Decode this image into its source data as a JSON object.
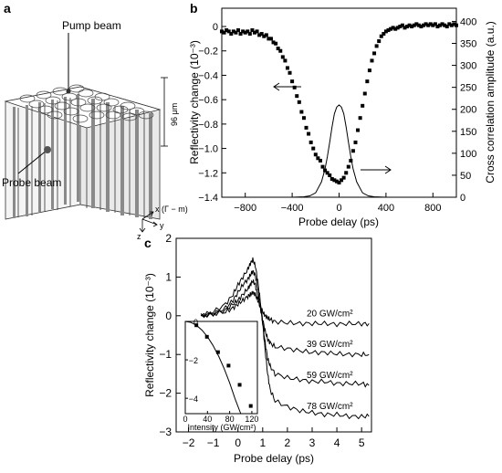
{
  "panels": {
    "a": {
      "label": "a",
      "pump_label": "Pump beam",
      "probe_label": "Probe beam",
      "height_label": "96 μm",
      "axis_x_label": "x (Γ − m)",
      "axis_y_label": "y",
      "axis_z_label": "z"
    },
    "b": {
      "label": "b"
    },
    "c": {
      "label": "c"
    }
  },
  "chart_data": [
    {
      "id": "b",
      "type": "scatter",
      "xlabel": "Probe delay (ps)",
      "ylabel": "Reflectivity change (10⁻³)",
      "ylabel_right": "Cross correlation amplitude (a.u.)",
      "xlim": [
        -1000,
        1000
      ],
      "ylim": [
        -1.4,
        0.15
      ],
      "ylim_right": [
        0,
        430
      ],
      "xticks": [
        -800,
        -400,
        0,
        400,
        800
      ],
      "yticks": [
        0,
        -0.2,
        -0.4,
        -0.6,
        -0.8,
        -1.0,
        -1.2,
        -1.4
      ],
      "yticks_right": [
        0,
        50,
        100,
        150,
        200,
        250,
        300,
        350,
        400
      ],
      "series": [
        {
          "axis": "left",
          "style": "squares",
          "x": [
            -1000,
            -980,
            -960,
            -940,
            -920,
            -900,
            -880,
            -860,
            -840,
            -820,
            -800,
            -780,
            -760,
            -740,
            -720,
            -700,
            -680,
            -660,
            -640,
            -620,
            -600,
            -580,
            -560,
            -540,
            -520,
            -500,
            -480,
            -460,
            -440,
            -420,
            -400,
            -380,
            -360,
            -340,
            -320,
            -300,
            -280,
            -260,
            -240,
            -220,
            -200,
            -180,
            -160,
            -140,
            -120,
            -100,
            -80,
            -60,
            -40,
            -20,
            0,
            20,
            40,
            60,
            80,
            100,
            120,
            140,
            160,
            180,
            200,
            220,
            240,
            260,
            280,
            300,
            320,
            340,
            360,
            380,
            400,
            420,
            440,
            460,
            480,
            500,
            520,
            540,
            560,
            580,
            600,
            620,
            640,
            660,
            680,
            700,
            720,
            740,
            760,
            780,
            800,
            820,
            840,
            860,
            880,
            900,
            920,
            940,
            960,
            980,
            1000
          ],
          "y": [
            -0.04,
            -0.05,
            -0.03,
            -0.04,
            -0.06,
            -0.04,
            -0.05,
            -0.03,
            -0.06,
            -0.04,
            -0.05,
            -0.04,
            -0.06,
            -0.03,
            -0.05,
            -0.04,
            -0.07,
            -0.06,
            -0.08,
            -0.07,
            -0.1,
            -0.1,
            -0.13,
            -0.14,
            -0.18,
            -0.2,
            -0.25,
            -0.28,
            -0.34,
            -0.38,
            -0.45,
            -0.5,
            -0.57,
            -0.62,
            -0.7,
            -0.75,
            -0.83,
            -0.88,
            -0.95,
            -1.0,
            -1.05,
            -1.08,
            -1.1,
            -1.15,
            -1.18,
            -1.2,
            -1.22,
            -1.25,
            -1.26,
            -1.27,
            -1.28,
            -1.26,
            -1.24,
            -1.2,
            -1.15,
            -1.1,
            -1.02,
            -0.95,
            -0.85,
            -0.75,
            -0.65,
            -0.55,
            -0.45,
            -0.36,
            -0.28,
            -0.22,
            -0.16,
            -0.12,
            -0.08,
            -0.06,
            -0.04,
            -0.03,
            -0.02,
            -0.01,
            -0.02,
            -0.01,
            0.0,
            0.01,
            -0.01,
            0.0,
            0.01,
            0.0,
            0.01,
            0.02,
            0.01,
            0.0,
            0.01,
            0.02,
            0.01,
            0.02,
            0.01,
            0.02,
            0.0,
            0.01,
            0.02,
            0.01,
            0.0,
            0.02,
            0.01,
            0.02,
            0.01
          ]
        },
        {
          "axis": "right",
          "style": "line",
          "x": [
            -1000,
            -600,
            -400,
            -300,
            -250,
            -200,
            -150,
            -120,
            -100,
            -80,
            -60,
            -40,
            -20,
            0,
            20,
            40,
            60,
            80,
            100,
            120,
            150,
            200,
            250,
            300,
            400,
            600,
            1000
          ],
          "y": [
            0,
            0,
            0,
            1,
            3,
            10,
            35,
            64,
            92,
            125,
            160,
            190,
            205,
            210,
            205,
            190,
            160,
            125,
            92,
            64,
            35,
            10,
            3,
            1,
            0,
            0,
            0
          ]
        }
      ],
      "annotations": [
        "arrow-left-to-left-axis",
        "arrow-right-to-right-axis"
      ]
    },
    {
      "id": "c",
      "type": "line",
      "xlabel": "Probe delay (ps)",
      "ylabel": "Reflectivity change (10⁻³)",
      "xlim": [
        -2.5,
        5.4
      ],
      "ylim": [
        -3,
        2
      ],
      "xticks": [
        -2,
        -1,
        0,
        1,
        2,
        3,
        4,
        5
      ],
      "yticks": [
        2,
        1,
        0,
        -1,
        -2,
        -3
      ],
      "series": [
        {
          "label": "20 GW/cm²",
          "x": [
            -1.5,
            -1,
            -0.5,
            -0.2,
            0,
            0.2,
            0.4,
            0.5,
            0.6,
            0.7,
            0.8,
            0.9,
            1,
            1.1,
            1.2,
            1.3,
            1.5,
            2,
            2.5,
            3,
            3.5,
            4,
            4.5,
            5,
            5.3
          ],
          "y": [
            0,
            0.05,
            0.1,
            0.2,
            0.3,
            0.4,
            0.5,
            0.55,
            0.6,
            0.55,
            0.4,
            0.25,
            0.1,
            0,
            -0.05,
            -0.1,
            -0.15,
            -0.18,
            -0.2,
            -0.2,
            -0.2,
            -0.22,
            -0.2,
            -0.21,
            -0.2
          ]
        },
        {
          "label": "39 GW/cm²",
          "x": [
            -1.5,
            -1,
            -0.5,
            -0.2,
            0,
            0.2,
            0.4,
            0.5,
            0.6,
            0.7,
            0.8,
            0.9,
            1,
            1.1,
            1.2,
            1.3,
            1.5,
            2,
            2.5,
            3,
            3.5,
            4,
            4.5,
            5,
            5.3
          ],
          "y": [
            0,
            0.05,
            0.15,
            0.3,
            0.4,
            0.55,
            0.7,
            0.8,
            0.9,
            0.8,
            0.5,
            0.2,
            -0.1,
            -0.4,
            -0.6,
            -0.7,
            -0.8,
            -0.85,
            -0.9,
            -0.95,
            -0.95,
            -0.98,
            -1.0,
            -1.0,
            -1.0
          ]
        },
        {
          "label": "59 GW/cm²",
          "x": [
            -1.5,
            -1,
            -0.5,
            -0.2,
            0,
            0.2,
            0.4,
            0.5,
            0.6,
            0.7,
            0.8,
            0.9,
            1,
            1.1,
            1.2,
            1.3,
            1.5,
            2,
            2.5,
            3,
            3.5,
            4,
            4.5,
            5,
            5.3
          ],
          "y": [
            0,
            0.05,
            0.2,
            0.4,
            0.6,
            0.8,
            0.95,
            1.05,
            1.15,
            1.05,
            0.7,
            0.3,
            -0.2,
            -0.7,
            -1.1,
            -1.3,
            -1.5,
            -1.6,
            -1.65,
            -1.7,
            -1.7,
            -1.75,
            -1.75,
            -1.75,
            -1.8
          ]
        },
        {
          "label": "78 GW/cm²",
          "x": [
            -1.5,
            -1,
            -0.5,
            -0.2,
            0,
            0.2,
            0.4,
            0.5,
            0.6,
            0.7,
            0.8,
            0.9,
            1,
            1.1,
            1.2,
            1.3,
            1.5,
            2,
            2.5,
            3,
            3.5,
            4,
            4.5,
            5,
            5.3
          ],
          "y": [
            0,
            0.1,
            0.3,
            0.55,
            0.8,
            1.0,
            1.2,
            1.35,
            1.45,
            1.3,
            0.9,
            0.4,
            -0.2,
            -0.9,
            -1.5,
            -1.9,
            -2.2,
            -2.35,
            -2.45,
            -2.5,
            -2.55,
            -2.55,
            -2.6,
            -2.6,
            -2.6
          ]
        }
      ]
    },
    {
      "id": "c-inset",
      "type": "scatter",
      "xlabel": "Intensity (GW/cm²)",
      "ylabel": "",
      "xlim": [
        0,
        130
      ],
      "ylim": [
        -4.8,
        0
      ],
      "xticks": [
        0,
        40,
        80,
        120
      ],
      "yticks": [
        0,
        -2,
        -4
      ],
      "series": [
        {
          "style": "squares",
          "x": [
            20,
            39,
            59,
            78,
            98,
            118
          ],
          "y": [
            -0.2,
            -0.8,
            -1.6,
            -2.3,
            -3.3,
            -4.4
          ]
        },
        {
          "style": "line",
          "x": [
            0,
            10,
            20,
            30,
            40,
            50,
            60,
            70,
            80,
            90,
            100
          ],
          "y": [
            0,
            -0.05,
            -0.2,
            -0.45,
            -0.8,
            -1.25,
            -1.8,
            -2.45,
            -3.2,
            -4.05,
            -5.0
          ]
        }
      ]
    }
  ]
}
